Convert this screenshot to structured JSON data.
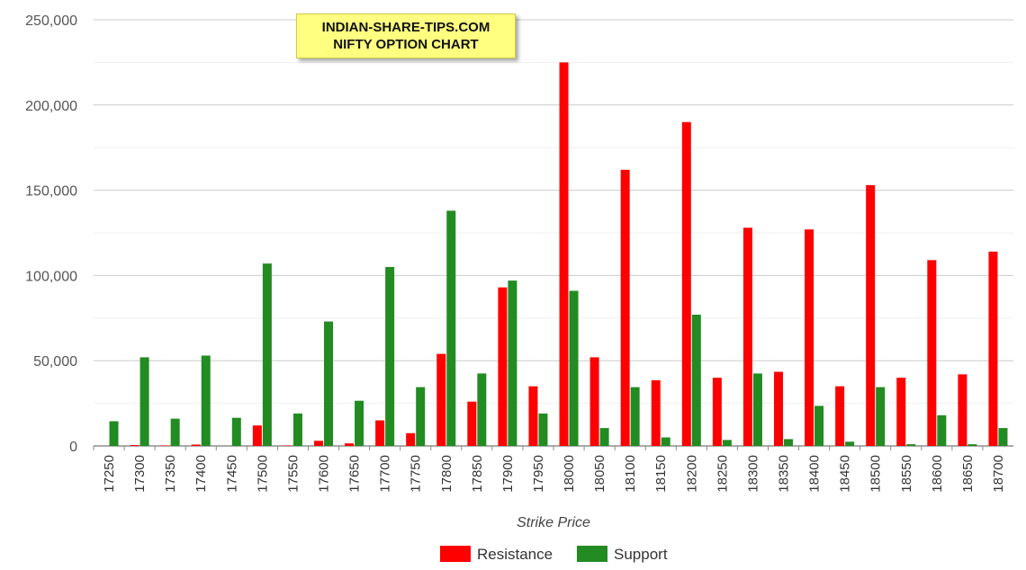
{
  "title_box": {
    "line1": "INDIAN-SHARE-TIPS.COM",
    "line2": "NIFTY OPTION CHART"
  },
  "chart_data": {
    "type": "bar",
    "xlabel": "Strike Price",
    "ylabel": "",
    "ylim": [
      0,
      250000
    ],
    "yticks": [
      0,
      50000,
      100000,
      150000,
      200000,
      250000
    ],
    "ytick_labels": [
      "0",
      "50,000",
      "100,000",
      "150,000",
      "200,000",
      "250,000"
    ],
    "grid": true,
    "legend_position": "bottom-center",
    "categories": [
      "17250",
      "17300",
      "17350",
      "17400",
      "17450",
      "17500",
      "17550",
      "17600",
      "17650",
      "17700",
      "17750",
      "17800",
      "17850",
      "17900",
      "17950",
      "18000",
      "18050",
      "18100",
      "18150",
      "18200",
      "18250",
      "18300",
      "18350",
      "18400",
      "18450",
      "18500",
      "18550",
      "18600",
      "18650",
      "18700"
    ],
    "series": [
      {
        "name": "Resistance",
        "color": "#ff0000",
        "values": [
          0,
          500,
          300,
          800,
          0,
          12000,
          300,
          3000,
          1500,
          15000,
          7500,
          54000,
          26000,
          93000,
          35000,
          225000,
          52000,
          162000,
          38500,
          190000,
          40000,
          128000,
          43500,
          127000,
          35000,
          153000,
          40000,
          109000,
          42000,
          114000
        ]
      },
      {
        "name": "Support",
        "color": "#228b22",
        "values": [
          14500,
          52000,
          16000,
          53000,
          16500,
          107000,
          19000,
          73000,
          26500,
          105000,
          34500,
          138000,
          42500,
          97000,
          19000,
          91000,
          10500,
          34500,
          5000,
          77000,
          3500,
          42500,
          4000,
          23500,
          2500,
          34500,
          1000,
          18000,
          1000,
          10500
        ]
      }
    ]
  }
}
